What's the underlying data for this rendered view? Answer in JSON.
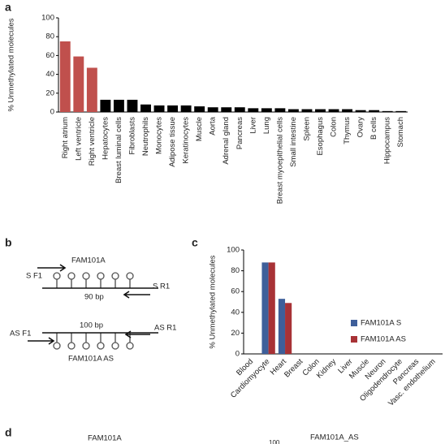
{
  "panel_labels": [
    "a",
    "b",
    "c",
    "d"
  ],
  "chart_data": [
    {
      "type": "bar",
      "ylabel": "% Unmethylated molecules",
      "categories": [
        "Right atrium",
        "Left ventricle",
        "Right ventricle",
        "Hepatocytes",
        "Breast luminal cells",
        "Fibroblasts",
        "Neutrophils",
        "Monocytes",
        "Adipose tissue",
        "Keratinocytes",
        "Muscle",
        "Aorta",
        "Adrenal gland",
        "Pancreas",
        "Liver",
        "Lung",
        "Breast myoepithelial cells",
        "Small intestine",
        "Spleen",
        "Esophagus",
        "Colon",
        "Thymus",
        "Ovary",
        "B cells",
        "Hippocampus",
        "Stomach"
      ],
      "values": [
        75,
        59,
        47,
        13,
        13,
        13,
        8,
        7,
        7,
        7,
        6,
        5,
        5,
        5,
        4,
        4,
        4,
        3,
        3,
        3,
        3,
        3,
        2,
        2,
        1,
        1
      ],
      "colors": [
        "#c0504d",
        "#c0504d",
        "#c0504d",
        "#000000",
        "#000000",
        "#000000",
        "#000000",
        "#000000",
        "#000000",
        "#000000",
        "#000000",
        "#000000",
        "#000000",
        "#000000",
        "#000000",
        "#000000",
        "#000000",
        "#000000",
        "#000000",
        "#000000",
        "#000000",
        "#000000",
        "#000000",
        "#000000",
        "#000000",
        "#000000"
      ],
      "ylim": [
        0,
        100
      ],
      "yticks": [
        0,
        20,
        40,
        60,
        80,
        100
      ]
    },
    {
      "type": "grouped_bar",
      "ylabel": "% Unmethylated molecules",
      "categories": [
        "Blood",
        "Cardiomyocyte",
        "Heart",
        "Breast",
        "Colon",
        "Kidney",
        "Liver",
        "Muscle",
        "Neuron",
        "Oligodendrocyte",
        "Pancreas",
        "Vasc. endothelium"
      ],
      "series": [
        {
          "name": "FAM101A S",
          "color": "#3e5f9a",
          "values": [
            0,
            88,
            53,
            0,
            0,
            0,
            0,
            0,
            0,
            0,
            0,
            0
          ]
        },
        {
          "name": "FAM101A AS",
          "color": "#a83236",
          "values": [
            0,
            88,
            49,
            0,
            0,
            0,
            0,
            0,
            0,
            0,
            0,
            0
          ]
        }
      ],
      "ylim": [
        0,
        100
      ],
      "yticks": [
        0,
        20,
        40,
        60,
        80,
        100
      ]
    }
  ],
  "diagram": {
    "s_f1": "S F1",
    "s_title": "FAM101A",
    "s_r1": "S R1",
    "s_size": "90 bp",
    "as_f1": "AS F1",
    "as_size": "100 bp",
    "as_r1": "AS R1",
    "as_title": "FAM101A AS"
  },
  "panel_d": {
    "titles": [
      "FAM101A",
      "FAM101A_AS"
    ],
    "ytick_top": 100
  }
}
